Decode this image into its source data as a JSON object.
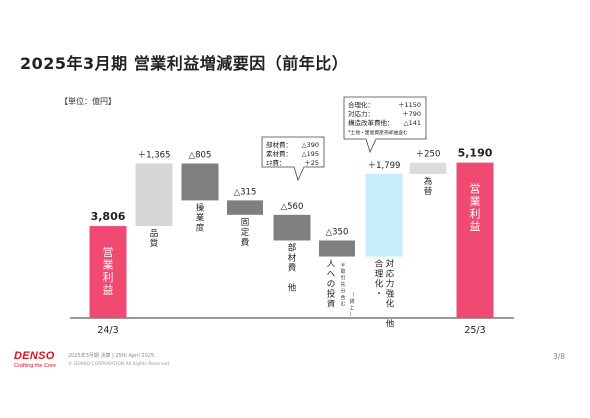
{
  "title": "2025年3月期 営業利益増減要因（前年比）",
  "unit": "【単位：億円】",
  "chart_data": {
    "type": "waterfall",
    "ylim": [
      1800,
      5400
    ],
    "items": [
      {
        "kind": "total",
        "value": 3806,
        "label": "3,806",
        "name": "営業利益",
        "axis": "24/3"
      },
      {
        "kind": "delta",
        "value": 1365,
        "label": "＋1,365",
        "name": "品質"
      },
      {
        "kind": "delta",
        "value": -805,
        "label": "△805",
        "name": "操業度"
      },
      {
        "kind": "delta",
        "value": -315,
        "label": "△315",
        "name": "固定費"
      },
      {
        "kind": "delta",
        "value": -560,
        "label": "△560",
        "name": "部材費 他"
      },
      {
        "kind": "delta",
        "value": -350,
        "label": "△350",
        "name": "人への投資",
        "note": "※取引先分含む",
        "sub": "（貸上）"
      },
      {
        "kind": "delta",
        "value": 1799,
        "label": "＋1,799",
        "name": "対応力強化 他",
        "name2": "合理化・"
      },
      {
        "kind": "delta",
        "value": 250,
        "label": "＋250",
        "name": "為替"
      },
      {
        "kind": "total",
        "value": 5190,
        "label": "5,190",
        "name": "営業利益",
        "axis": "25/3"
      }
    ],
    "colors": {
      "total": "#f04a72",
      "positive_grey": "#d6d6d6",
      "negative": "#7f7f7f",
      "positive_blue": "#c8ecfa",
      "exchange": "#dcdcdc"
    },
    "callouts": [
      {
        "rows": [
          [
            "部材費：",
            "△390"
          ],
          [
            "素材費：",
            "△195"
          ],
          [
            "ｴﾈ費：",
            "＋25"
          ]
        ]
      },
      {
        "rows": [
          [
            "合理化：",
            "＋1150"
          ],
          [
            "対応力：",
            "＋790"
          ],
          [
            "構造改革費他：",
            "△141"
          ]
        ],
        "note": "*土地・建屋資産売却益含む"
      }
    ]
  },
  "footer": {
    "logo": "DENSO",
    "tagline": "Crafting the Core",
    "meta": "2025年3月期 決算 | 25th April 2025",
    "copyright": "© DENSO CORPORATION All Rights Reserved.",
    "page": "3/8"
  }
}
